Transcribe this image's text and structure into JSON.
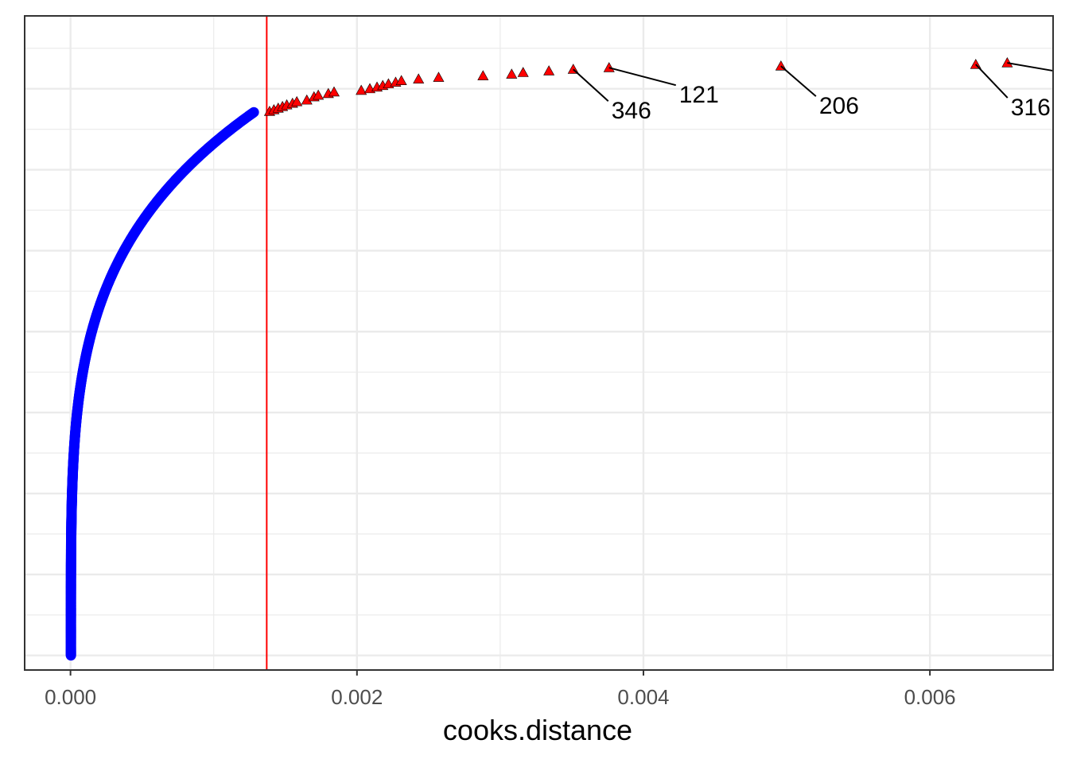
{
  "chart_data": {
    "type": "scatter",
    "xlabel": "cooks.distance",
    "ylabel": "",
    "xlim": [
      -0.00032,
      0.00686
    ],
    "ylim": [
      -18,
      790
    ],
    "x_ticks": [
      {
        "value": 0.0,
        "label": "0.000"
      },
      {
        "value": 0.002,
        "label": "0.002"
      },
      {
        "value": 0.004,
        "label": "0.004"
      },
      {
        "value": 0.006,
        "label": "0.006"
      }
    ],
    "grid": true,
    "threshold": {
      "x": 0.00137,
      "color": "#ff0000"
    },
    "normal_points": {
      "color": "#0000ff",
      "shape": "circle"
    },
    "influential_points": {
      "color": "#ff0000",
      "shape": "triangle",
      "x": [
        0.00139,
        0.00142,
        0.00145,
        0.00148,
        0.00151,
        0.00155,
        0.00158,
        0.00165,
        0.0017,
        0.00173,
        0.0018,
        0.00184,
        0.00203,
        0.00209,
        0.00214,
        0.00218,
        0.00222,
        0.00227,
        0.00231,
        0.00243,
        0.00257,
        0.00288,
        0.00308,
        0.00316,
        0.00334,
        0.00351,
        0.00376,
        0.00496,
        0.00632,
        0.00654
      ],
      "y": [
        672,
        674,
        676,
        678,
        680,
        682,
        684,
        686,
        690,
        692,
        694,
        696,
        698,
        700,
        702,
        704,
        706,
        708,
        710,
        712,
        714,
        716,
        718,
        720,
        722,
        724,
        726,
        728,
        730,
        732
      ]
    },
    "labels": [
      {
        "text": "346",
        "x": 0.00351,
        "y": 724
      },
      {
        "text": "121",
        "x": 0.00376,
        "y": 726
      },
      {
        "text": "206",
        "x": 0.00496,
        "y": 728
      },
      {
        "text": "316",
        "x": 0.00632,
        "y": 730
      }
    ],
    "offpanel_label_x": 0.00654,
    "offpanel_label_y": 732
  }
}
